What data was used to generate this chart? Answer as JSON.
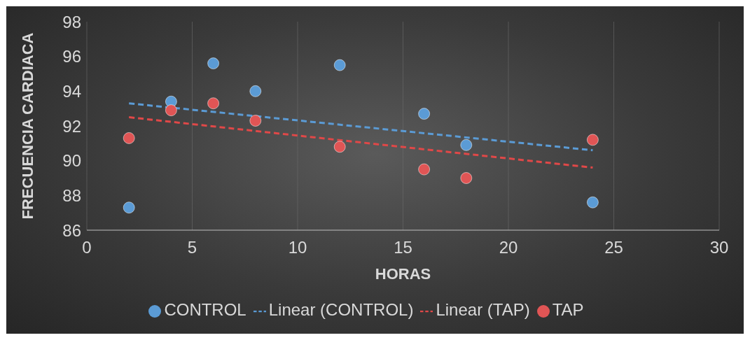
{
  "chart_data": {
    "type": "scatter",
    "xlabel": "HORAS",
    "ylabel": "FRECUENCIA CARDIACA",
    "xlim": [
      0,
      30
    ],
    "xticks": [
      0,
      5,
      10,
      15,
      20,
      25,
      30
    ],
    "ylim": [
      86,
      98
    ],
    "yticks": [
      86,
      88,
      90,
      92,
      94,
      96,
      98
    ],
    "grid": "x",
    "legend": "bottom",
    "marker": "circle",
    "series": [
      {
        "name": "CONTROL",
        "color": "#5b9bd5",
        "x": [
          2,
          4,
          6,
          8,
          12,
          16,
          18,
          24
        ],
        "values": [
          87.3,
          93.4,
          95.6,
          94.0,
          95.5,
          92.7,
          90.9,
          87.6
        ]
      },
      {
        "name": "TAP",
        "color": "#e05555",
        "x": [
          2,
          4,
          6,
          8,
          12,
          16,
          18,
          24
        ],
        "values": [
          91.3,
          92.9,
          93.3,
          92.3,
          90.8,
          89.5,
          89.0,
          91.2
        ]
      },
      {
        "name": "Linear (CONTROL)",
        "type": "line",
        "line_style": "dashed",
        "marker": "none",
        "color": "#5b9bd5",
        "x": [
          2,
          24
        ],
        "values": [
          93.3,
          90.6
        ]
      },
      {
        "name": "Linear (TAP)",
        "type": "line",
        "line_style": "dashed",
        "marker": "none",
        "color": "#e04848",
        "x": [
          2,
          24
        ],
        "values": [
          92.5,
          89.6
        ]
      }
    ]
  }
}
